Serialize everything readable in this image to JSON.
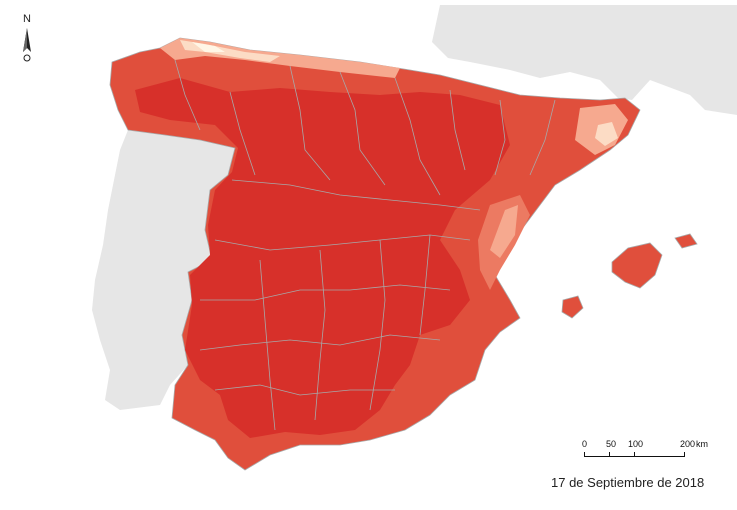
{
  "north_arrow": {
    "label": "N"
  },
  "scale_bar": {
    "ticks": [
      "0",
      "50",
      "100",
      "200"
    ],
    "unit": "km"
  },
  "date": "17 de Septiembre de 2018",
  "colors": {
    "background": "#ffffff",
    "other_countries": "#e6e6e6",
    "borders": "#a8a8a8",
    "class_high": "#d7302a",
    "class_mid_high": "#e04f3c",
    "class_mid": "#ec7a62",
    "class_mid_low": "#f6a98f",
    "class_low": "#fcdcc5",
    "class_lowest": "#fff6e6"
  }
}
